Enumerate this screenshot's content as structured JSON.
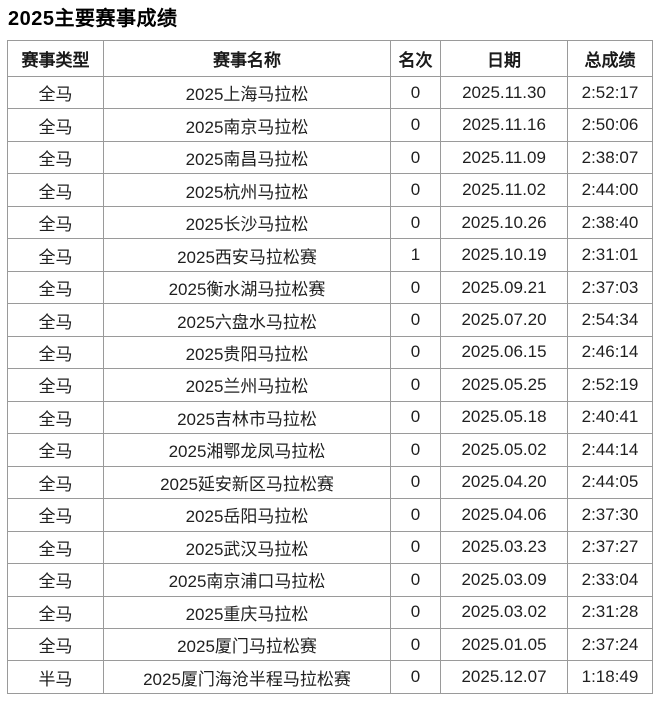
{
  "page": {
    "title": "2025主要赛事成绩"
  },
  "colors": {
    "background": "#ffffff",
    "text": "#1a1a1a",
    "border": "#9a9a9a"
  },
  "table": {
    "headers": [
      "赛事类型",
      "赛事名称",
      "名次",
      "日期",
      "总成绩"
    ],
    "rows": [
      [
        "全马",
        "2025上海马拉松",
        "0",
        "2025.11.30",
        "2:52:17"
      ],
      [
        "全马",
        "2025南京马拉松",
        "0",
        "2025.11.16",
        "2:50:06"
      ],
      [
        "全马",
        "2025南昌马拉松",
        "0",
        "2025.11.09",
        "2:38:07"
      ],
      [
        "全马",
        "2025杭州马拉松",
        "0",
        "2025.11.02",
        "2:44:00"
      ],
      [
        "全马",
        "2025长沙马拉松",
        "0",
        "2025.10.26",
        "2:38:40"
      ],
      [
        "全马",
        "2025西安马拉松赛",
        "1",
        "2025.10.19",
        "2:31:01"
      ],
      [
        "全马",
        "2025衡水湖马拉松赛",
        "0",
        "2025.09.21",
        "2:37:03"
      ],
      [
        "全马",
        "2025六盘水马拉松",
        "0",
        "2025.07.20",
        "2:54:34"
      ],
      [
        "全马",
        "2025贵阳马拉松",
        "0",
        "2025.06.15",
        "2:46:14"
      ],
      [
        "全马",
        "2025兰州马拉松",
        "0",
        "2025.05.25",
        "2:52:19"
      ],
      [
        "全马",
        "2025吉林市马拉松",
        "0",
        "2025.05.18",
        "2:40:41"
      ],
      [
        "全马",
        "2025湘鄂龙凤马拉松",
        "0",
        "2025.05.02",
        "2:44:14"
      ],
      [
        "全马",
        "2025延安新区马拉松赛",
        "0",
        "2025.04.20",
        "2:44:05"
      ],
      [
        "全马",
        "2025岳阳马拉松",
        "0",
        "2025.04.06",
        "2:37:30"
      ],
      [
        "全马",
        "2025武汉马拉松",
        "0",
        "2025.03.23",
        "2:37:27"
      ],
      [
        "全马",
        "2025南京浦口马拉松",
        "0",
        "2025.03.09",
        "2:33:04"
      ],
      [
        "全马",
        "2025重庆马拉松",
        "0",
        "2025.03.02",
        "2:31:28"
      ],
      [
        "全马",
        "2025厦门马拉松赛",
        "0",
        "2025.01.05",
        "2:37:24"
      ],
      [
        "半马",
        "2025厦门海沧半程马拉松赛",
        "0",
        "2025.12.07",
        "1:18:49"
      ]
    ]
  }
}
